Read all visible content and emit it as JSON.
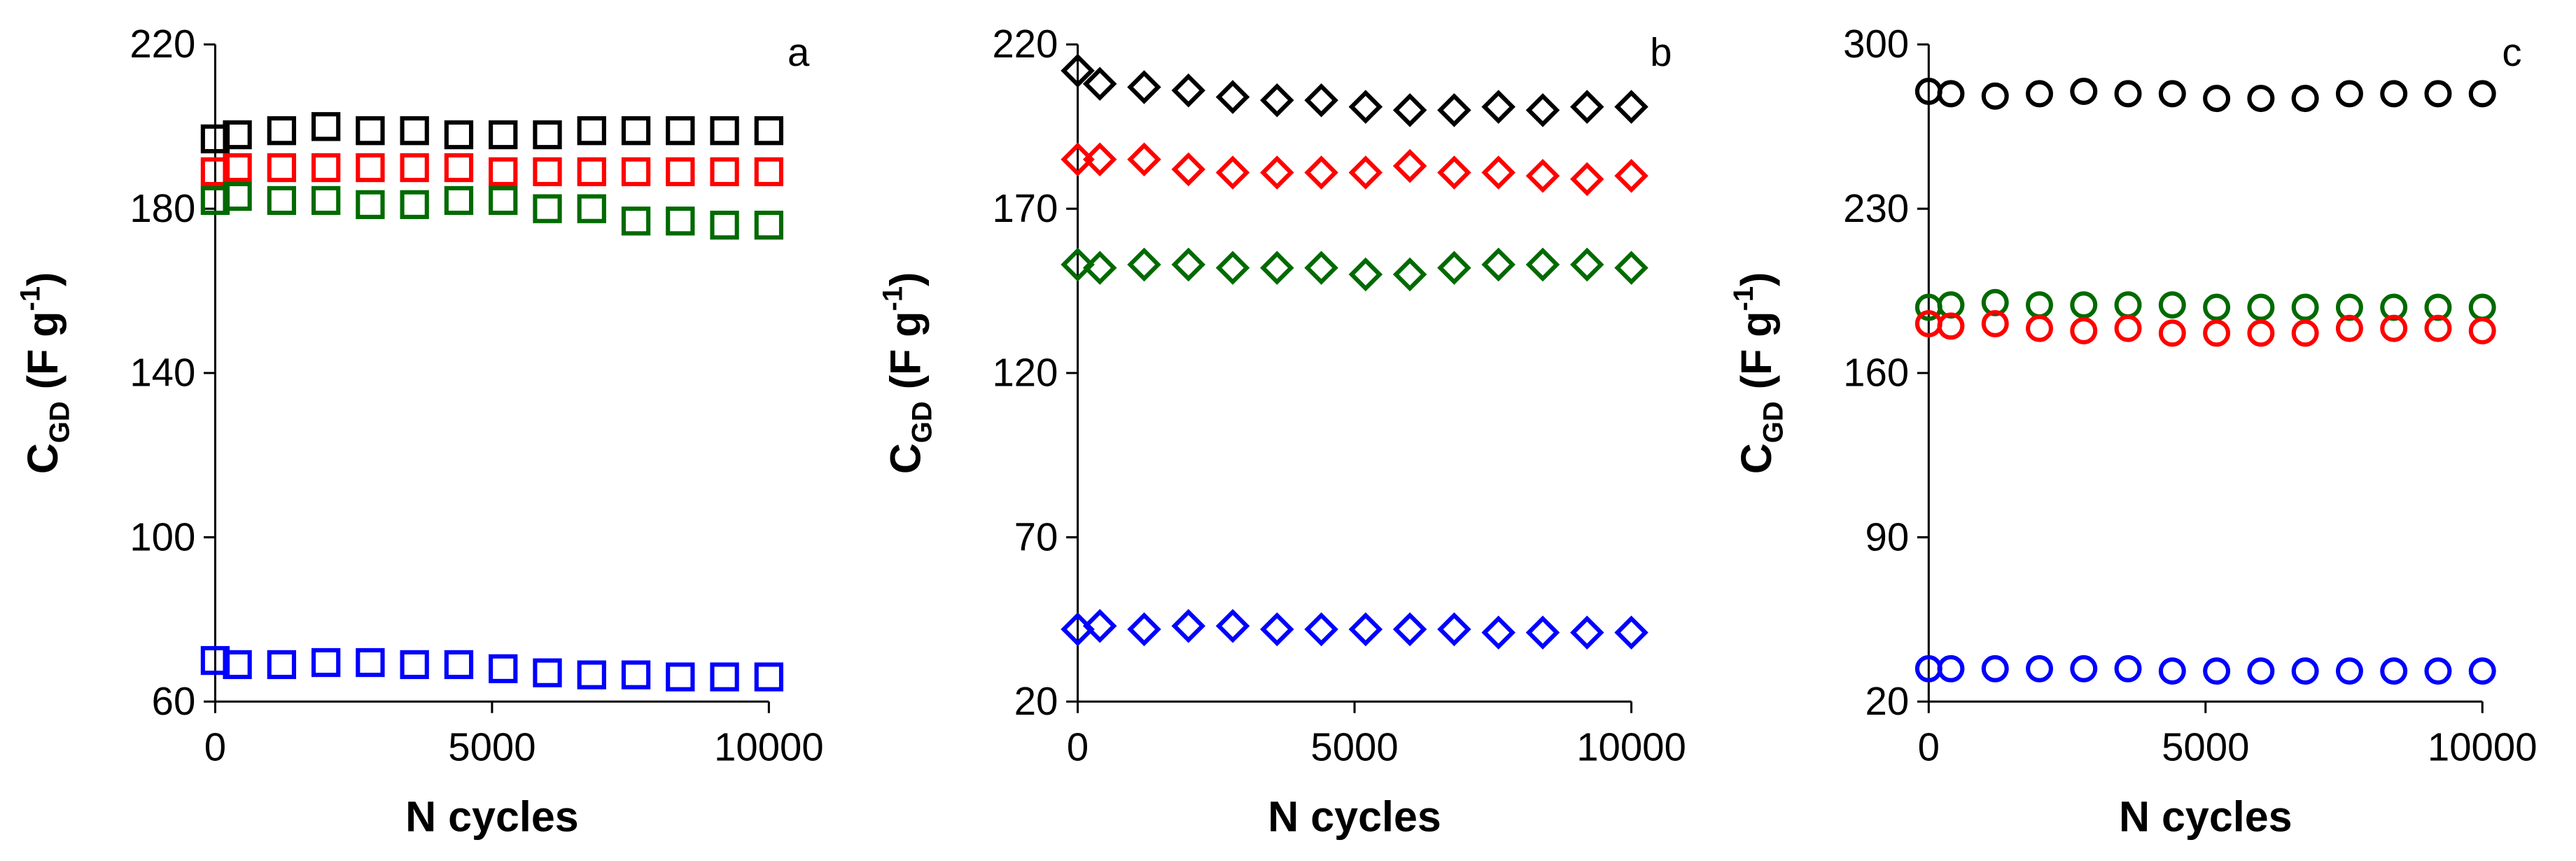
{
  "chart_data": [
    {
      "type": "scatter",
      "panel": "a",
      "marker": "square",
      "xlabel": "N cycles",
      "ylabel": [
        {
          "text": "C"
        },
        {
          "text": "GD",
          "shift": "sub"
        },
        {
          "text": " (F g"
        },
        {
          "text": "-1",
          "shift": "super"
        },
        {
          "text": ")"
        }
      ],
      "x": [
        0,
        400,
        1200,
        2000,
        2800,
        3600,
        4400,
        5200,
        6000,
        6800,
        7600,
        8400,
        9200,
        10000
      ],
      "xlim": [
        0,
        10000
      ],
      "xticks": [
        0,
        5000,
        10000
      ],
      "ylim": [
        60,
        220
      ],
      "yticks": [
        60,
        100,
        140,
        180,
        220
      ],
      "series": [
        {
          "color": "#000000",
          "values": [
            197,
            198,
            199,
            200,
            199,
            199,
            198,
            198,
            198,
            199,
            199,
            199,
            199,
            199
          ]
        },
        {
          "color": "#ff0000",
          "values": [
            189,
            190,
            190,
            190,
            190,
            190,
            190,
            189,
            189,
            189,
            189,
            189,
            189,
            189
          ]
        },
        {
          "color": "#006a00",
          "values": [
            182,
            183,
            182,
            182,
            181,
            181,
            182,
            182,
            180,
            180,
            177,
            177,
            176,
            176
          ]
        },
        {
          "color": "#0000ff",
          "values": [
            70,
            69,
            69,
            69.5,
            69.5,
            69,
            69,
            68,
            67,
            66.5,
            66.5,
            66,
            66,
            66
          ]
        }
      ]
    },
    {
      "type": "scatter",
      "panel": "b",
      "marker": "diamond",
      "xlabel": "N cycles",
      "ylabel": [
        {
          "text": "C"
        },
        {
          "text": "GD",
          "shift": "sub"
        },
        {
          "text": " (F g"
        },
        {
          "text": "-1",
          "shift": "super"
        },
        {
          "text": ")"
        }
      ],
      "x": [
        0,
        400,
        1200,
        2000,
        2800,
        3600,
        4400,
        5200,
        6000,
        6800,
        7600,
        8400,
        9200,
        10000
      ],
      "xlim": [
        0,
        10000
      ],
      "xticks": [
        0,
        5000,
        10000
      ],
      "ylim": [
        20,
        220
      ],
      "yticks": [
        20,
        70,
        120,
        170,
        220
      ],
      "series": [
        {
          "color": "#000000",
          "values": [
            212,
            208,
            207,
            206,
            204,
            203,
            203,
            201,
            200,
            200,
            201,
            200,
            201,
            201
          ]
        },
        {
          "color": "#ff0000",
          "values": [
            185,
            185,
            185,
            182,
            181,
            181,
            181,
            181,
            183,
            181,
            181,
            180,
            179,
            180
          ]
        },
        {
          "color": "#006a00",
          "values": [
            153,
            152,
            153,
            153,
            152,
            152,
            152,
            150,
            150,
            152,
            153,
            153,
            153,
            152
          ]
        },
        {
          "color": "#0000ff",
          "values": [
            42,
            43,
            42,
            43,
            43,
            42,
            42,
            42,
            42,
            42,
            41,
            41,
            41,
            41
          ]
        }
      ]
    },
    {
      "type": "scatter",
      "panel": "c",
      "marker": "circle",
      "xlabel": "N cycles",
      "ylabel": [
        {
          "text": "C"
        },
        {
          "text": "GD",
          "shift": "sub"
        },
        {
          "text": " (F g"
        },
        {
          "text": "-1",
          "shift": "super"
        },
        {
          "text": ")"
        }
      ],
      "x": [
        0,
        400,
        1200,
        2000,
        2800,
        3600,
        4400,
        5200,
        6000,
        6800,
        7600,
        8400,
        9200,
        10000
      ],
      "xlim": [
        0,
        10000
      ],
      "xticks": [
        0,
        5000,
        10000
      ],
      "ylim": [
        20,
        300
      ],
      "yticks": [
        20,
        90,
        160,
        230,
        300
      ],
      "series": [
        {
          "color": "#000000",
          "values": [
            280,
            279,
            278,
            279,
            280,
            279,
            279,
            277,
            277,
            277,
            279,
            279,
            279,
            279
          ]
        },
        {
          "color": "#006a00",
          "values": [
            188,
            189,
            190,
            189,
            189,
            189,
            189,
            188,
            188,
            188,
            188,
            188,
            188,
            188
          ]
        },
        {
          "color": "#ff0000",
          "values": [
            181,
            180,
            181,
            179,
            178,
            179,
            177,
            177,
            177,
            177,
            179,
            179,
            179,
            178
          ]
        },
        {
          "color": "#0000ff",
          "values": [
            34,
            34,
            34,
            34,
            34,
            34,
            33,
            33,
            33,
            33,
            33,
            33,
            33,
            33
          ]
        }
      ]
    }
  ]
}
